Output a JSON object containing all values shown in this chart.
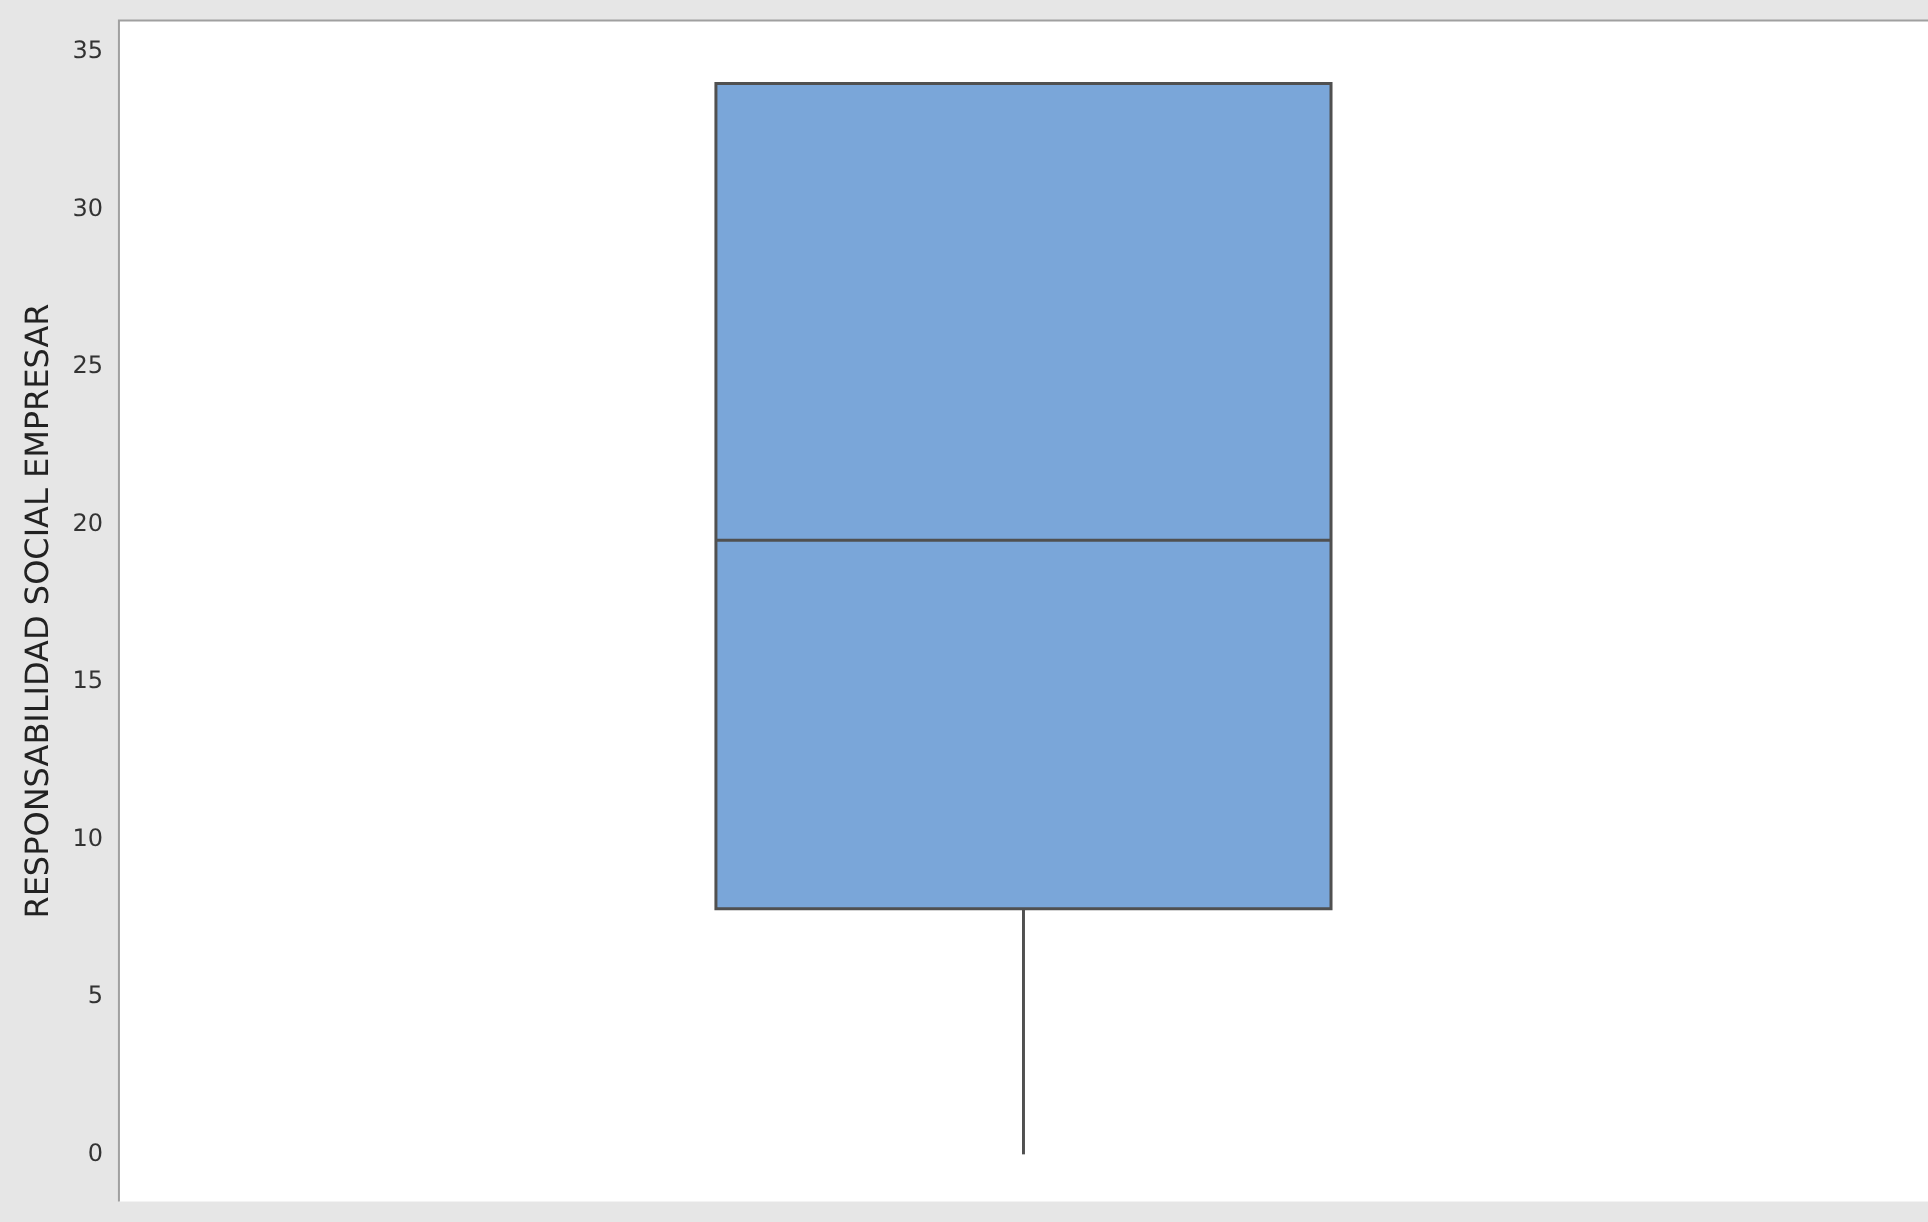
{
  "chart_data": {
    "type": "box",
    "ylabel": "RESPONSABILIDAD SOCIAL EMPRESAR",
    "categories": [
      null
    ],
    "boxes": [
      {
        "low": 0,
        "q1": 7.8,
        "median": 19.5,
        "q3": 34,
        "high": 34
      }
    ],
    "color": "#7aa6d9",
    "ylim": [
      -1.5,
      36
    ],
    "yticks": [
      0,
      5,
      10,
      15,
      20,
      25,
      30,
      35
    ],
    "grid": false,
    "tick_labels": "y"
  }
}
